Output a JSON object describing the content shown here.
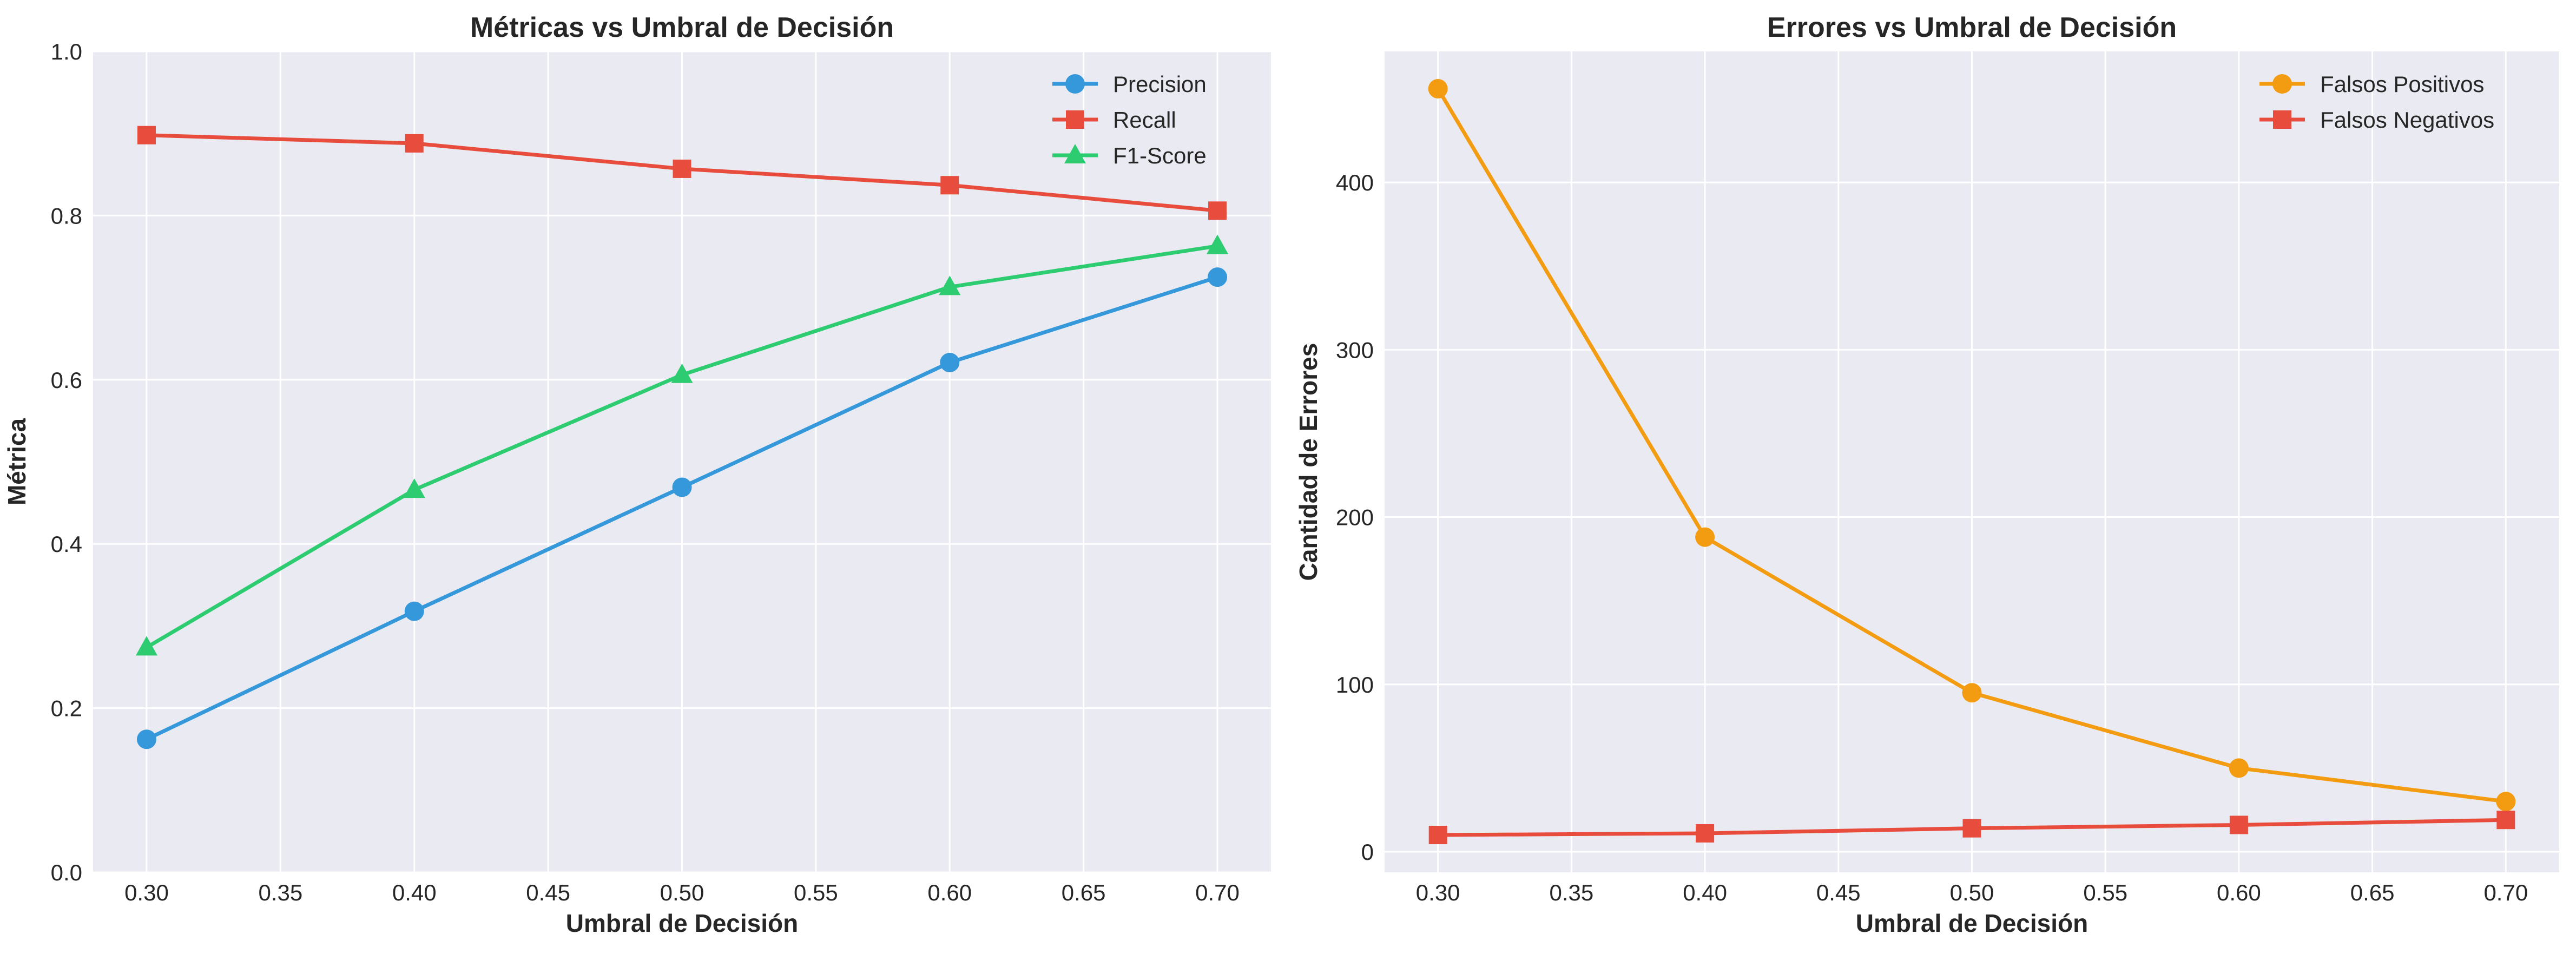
{
  "chart_data": [
    {
      "type": "line",
      "title": "Métricas vs Umbral de Decisión",
      "xlabel": "Umbral de Decisión",
      "ylabel": "Métrica",
      "x": [
        0.3,
        0.4,
        0.5,
        0.6,
        0.7
      ],
      "xlim": [
        0.28,
        0.72
      ],
      "ylim": [
        0.0,
        1.0
      ],
      "xticks": [
        "0.30",
        "0.35",
        "0.40",
        "0.45",
        "0.50",
        "0.55",
        "0.60",
        "0.65",
        "0.70"
      ],
      "yticks": [
        "0.0",
        "0.2",
        "0.4",
        "0.6",
        "0.8",
        "1.0"
      ],
      "grid": true,
      "legend_position": "top-right",
      "series": [
        {
          "name": "Precision",
          "color": "#3498db",
          "marker": "circle",
          "values": [
            0.162,
            0.318,
            0.469,
            0.621,
            0.725
          ]
        },
        {
          "name": "Recall",
          "color": "#e74c3c",
          "marker": "square",
          "values": [
            0.898,
            0.888,
            0.857,
            0.837,
            0.806
          ]
        },
        {
          "name": "F1-Score",
          "color": "#2ecc71",
          "marker": "triangle",
          "values": [
            0.274,
            0.466,
            0.606,
            0.713,
            0.763
          ]
        }
      ]
    },
    {
      "type": "line",
      "title": "Errores vs Umbral de Decisión",
      "xlabel": "Umbral de Decisión",
      "ylabel": "Cantidad de Errores",
      "x": [
        0.3,
        0.4,
        0.5,
        0.6,
        0.7
      ],
      "xlim": [
        0.28,
        0.72
      ],
      "ylim": [
        -12.3,
        478.3
      ],
      "xticks": [
        "0.30",
        "0.35",
        "0.40",
        "0.45",
        "0.50",
        "0.55",
        "0.60",
        "0.65",
        "0.70"
      ],
      "yticks": [
        "0",
        "100",
        "200",
        "300",
        "400"
      ],
      "grid": true,
      "legend_position": "top-right",
      "series": [
        {
          "name": "Falsos Positivos",
          "color": "#f39c12",
          "marker": "circle",
          "values": [
            456,
            188,
            95,
            50,
            30
          ]
        },
        {
          "name": "Falsos Negativos",
          "color": "#e74c3c",
          "marker": "square",
          "values": [
            10,
            11,
            14,
            16,
            19
          ]
        }
      ]
    }
  ]
}
